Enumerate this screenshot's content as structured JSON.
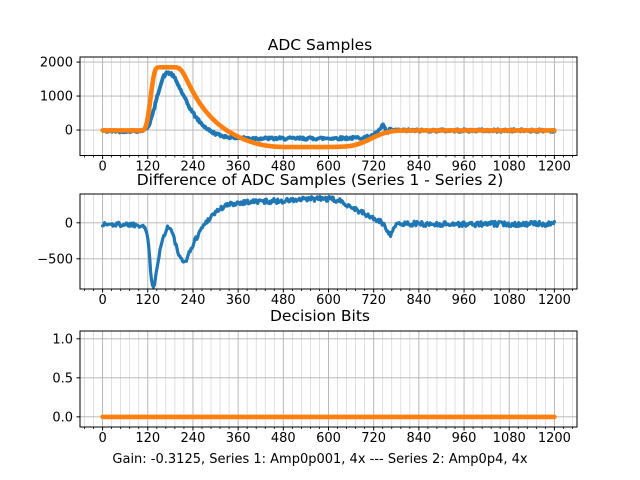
{
  "figure": {
    "background": "#ffffff",
    "footer_label": "Gain: -0.3125, Series 1: Amp0p001, 4x --- Series 2: Amp0p4, 4x"
  },
  "colors": {
    "series1_blue": "#1f77b4",
    "series2_orange": "#ff7f0e",
    "grid_major": "#b0b0b0",
    "grid_minor": "#d2d2d2",
    "spine": "#000000",
    "tick_text": "#000000"
  },
  "chart_data": [
    {
      "type": "line",
      "title": "ADC Samples",
      "xlabel": "",
      "ylabel": "",
      "grid": true,
      "legend": false,
      "xlim": [
        -60,
        1260
      ],
      "ylim": [
        -750,
        2150
      ],
      "xticks": [
        0,
        120,
        240,
        360,
        480,
        600,
        720,
        840,
        960,
        1080,
        1200
      ],
      "x_minor_step": 24,
      "yticks": [
        0,
        1000,
        2000
      ],
      "ytick_labels": [
        "0",
        "1000",
        "2000"
      ],
      "series": [
        {
          "name": "Series 1 (Amp0p001, 4x)",
          "color": "#1f77b4",
          "style": "noisy",
          "width": 3.8,
          "noise": 40,
          "sample_step": 2.5,
          "seed": 42,
          "points": [
            [
              0,
              -25
            ],
            [
              40,
              -30
            ],
            [
              80,
              -25
            ],
            [
              100,
              -20
            ],
            [
              112,
              0
            ],
            [
              122,
              120
            ],
            [
              132,
              420
            ],
            [
              142,
              850
            ],
            [
              152,
              1280
            ],
            [
              162,
              1580
            ],
            [
              172,
              1690
            ],
            [
              182,
              1660
            ],
            [
              192,
              1520
            ],
            [
              202,
              1300
            ],
            [
              215,
              1000
            ],
            [
              230,
              680
            ],
            [
              245,
              420
            ],
            [
              260,
              210
            ],
            [
              275,
              60
            ],
            [
              290,
              -60
            ],
            [
              310,
              -150
            ],
            [
              330,
              -200
            ],
            [
              360,
              -230
            ],
            [
              400,
              -245
            ],
            [
              460,
              -250
            ],
            [
              520,
              -250
            ],
            [
              580,
              -245
            ],
            [
              640,
              -240
            ],
            [
              680,
              -230
            ],
            [
              700,
              -210
            ],
            [
              715,
              -170
            ],
            [
              728,
              -90
            ],
            [
              738,
              20
            ],
            [
              745,
              180
            ],
            [
              750,
              40
            ],
            [
              756,
              -120
            ],
            [
              763,
              10
            ],
            [
              772,
              -15
            ],
            [
              785,
              -15
            ],
            [
              800,
              -12
            ],
            [
              850,
              -15
            ],
            [
              900,
              -12
            ],
            [
              950,
              -15
            ],
            [
              1000,
              -12
            ],
            [
              1050,
              -15
            ],
            [
              1100,
              -12
            ],
            [
              1150,
              -15
            ],
            [
              1200,
              -15
            ]
          ]
        },
        {
          "name": "Series 2 (Amp0p4, 4x)",
          "color": "#ff7f0e",
          "style": "smooth",
          "width": 4.6,
          "noise": 0,
          "points": [
            [
              0,
              -12
            ],
            [
              60,
              -12
            ],
            [
              100,
              -12
            ],
            [
              107,
              -5
            ],
            [
              113,
              60
            ],
            [
              119,
              300
            ],
            [
              125,
              750
            ],
            [
              131,
              1250
            ],
            [
              136,
              1600
            ],
            [
              141,
              1790
            ],
            [
              147,
              1842
            ],
            [
              160,
              1848
            ],
            [
              185,
              1848
            ],
            [
              198,
              1840
            ],
            [
              207,
              1780
            ],
            [
              216,
              1640
            ],
            [
              228,
              1380
            ],
            [
              242,
              1080
            ],
            [
              258,
              790
            ],
            [
              275,
              540
            ],
            [
              292,
              330
            ],
            [
              310,
              150
            ],
            [
              330,
              -10
            ],
            [
              352,
              -150
            ],
            [
              375,
              -270
            ],
            [
              400,
              -370
            ],
            [
              425,
              -440
            ],
            [
              450,
              -480
            ],
            [
              475,
              -497
            ],
            [
              510,
              -503
            ],
            [
              560,
              -503
            ],
            [
              610,
              -498
            ],
            [
              640,
              -488
            ],
            [
              660,
              -465
            ],
            [
              680,
              -410
            ],
            [
              700,
              -320
            ],
            [
              720,
              -215
            ],
            [
              740,
              -120
            ],
            [
              758,
              -60
            ],
            [
              775,
              -30
            ],
            [
              795,
              -18
            ],
            [
              830,
              -14
            ],
            [
              900,
              -12
            ],
            [
              1000,
              -12
            ],
            [
              1100,
              -12
            ],
            [
              1200,
              -12
            ]
          ]
        }
      ]
    },
    {
      "type": "line",
      "title": "Difference of ADC Samples (Series 1 - Series 2)",
      "xlabel": "",
      "ylabel": "",
      "grid": true,
      "legend": false,
      "xlim": [
        -60,
        1260
      ],
      "ylim": [
        -920,
        400
      ],
      "xticks": [
        0,
        120,
        240,
        360,
        480,
        600,
        720,
        840,
        960,
        1080,
        1200
      ],
      "x_minor_step": 24,
      "yticks": [
        -500,
        0
      ],
      "ytick_labels": [
        "−500",
        "0"
      ],
      "series": [
        {
          "name": "Series 1 - Series 2",
          "color": "#1f77b4",
          "style": "noisy",
          "width": 3.2,
          "noise": 35,
          "sample_step": 2.5,
          "seed": 1337,
          "points": [
            [
              0,
              -20
            ],
            [
              30,
              -25
            ],
            [
              60,
              -20
            ],
            [
              90,
              -25
            ],
            [
              105,
              -30
            ],
            [
              112,
              -60
            ],
            [
              118,
              -150
            ],
            [
              123,
              -380
            ],
            [
              127,
              -620
            ],
            [
              131,
              -820
            ],
            [
              134,
              -880
            ],
            [
              138,
              -830
            ],
            [
              143,
              -660
            ],
            [
              149,
              -470
            ],
            [
              156,
              -300
            ],
            [
              163,
              -170
            ],
            [
              170,
              -80
            ],
            [
              176,
              -50
            ],
            [
              182,
              -100
            ],
            [
              188,
              -190
            ],
            [
              195,
              -320
            ],
            [
              202,
              -440
            ],
            [
              208,
              -520
            ],
            [
              214,
              -555
            ],
            [
              220,
              -525
            ],
            [
              228,
              -450
            ],
            [
              236,
              -350
            ],
            [
              245,
              -250
            ],
            [
              255,
              -150
            ],
            [
              265,
              -60
            ],
            [
              278,
              30
            ],
            [
              292,
              110
            ],
            [
              308,
              180
            ],
            [
              325,
              230
            ],
            [
              345,
              265
            ],
            [
              370,
              285
            ],
            [
              400,
              295
            ],
            [
              440,
              300
            ],
            [
              480,
              305
            ],
            [
              520,
              315
            ],
            [
              555,
              330
            ],
            [
              585,
              335
            ],
            [
              610,
              325
            ],
            [
              630,
              300
            ],
            [
              648,
              260
            ],
            [
              665,
              210
            ],
            [
              682,
              160
            ],
            [
              698,
              115
            ],
            [
              712,
              80
            ],
            [
              726,
              45
            ],
            [
              740,
              5
            ],
            [
              750,
              -40
            ],
            [
              758,
              -120
            ],
            [
              764,
              -170
            ],
            [
              770,
              -90
            ],
            [
              778,
              -40
            ],
            [
              790,
              -20
            ],
            [
              810,
              -10
            ],
            [
              840,
              -15
            ],
            [
              880,
              -20
            ],
            [
              920,
              -15
            ],
            [
              960,
              -20
            ],
            [
              1000,
              -18
            ],
            [
              1050,
              -15
            ],
            [
              1100,
              -18
            ],
            [
              1150,
              -15
            ],
            [
              1200,
              -18
            ]
          ]
        }
      ]
    },
    {
      "type": "line",
      "title": "Decision Bits",
      "xlabel": "Gain: -0.3125, Series 1: Amp0p001, 4x --- Series 2: Amp0p4, 4x",
      "ylabel": "",
      "grid": true,
      "legend": false,
      "xlim": [
        -60,
        1260
      ],
      "ylim": [
        -0.13,
        1.1
      ],
      "xticks": [
        0,
        120,
        240,
        360,
        480,
        600,
        720,
        840,
        960,
        1080,
        1200
      ],
      "x_minor_step": 24,
      "yticks": [
        0,
        0.5,
        1
      ],
      "ytick_labels": [
        "0.0",
        "0.5",
        "1.0"
      ],
      "series": [
        {
          "name": "Decision Bits",
          "color": "#ff7f0e",
          "style": "smooth",
          "width": 4.6,
          "noise": 0,
          "points": [
            [
              0,
              0
            ],
            [
              300,
              0
            ],
            [
              600,
              0
            ],
            [
              900,
              0
            ],
            [
              1200,
              0
            ]
          ]
        }
      ]
    }
  ]
}
